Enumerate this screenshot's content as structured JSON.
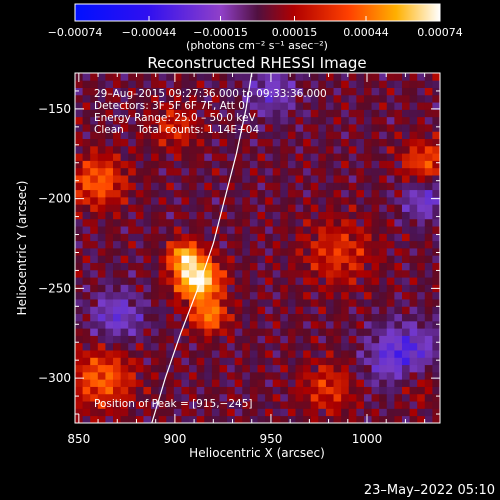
{
  "chart_data": {
    "type": "heatmap",
    "title": "Reconstructed RHESSI Image",
    "xlabel": "Heliocentric X (arcsec)",
    "ylabel": "Heliocentric Y (arcsec)",
    "xlim": [
      848,
      1038
    ],
    "ylim": [
      -325,
      -130
    ],
    "x_ticks": [
      850,
      900,
      950,
      1000
    ],
    "x_tick_labels": [
      "850",
      "900",
      "950",
      "1000"
    ],
    "y_ticks": [
      -150,
      -200,
      -250,
      -300
    ],
    "y_tick_labels": [
      "−150",
      "−200",
      "−250",
      "−300"
    ],
    "colorbar": {
      "range": [
        -0.00074,
        0.00074
      ],
      "tick_values": [
        -0.00074,
        -0.00044,
        -0.00015,
        0.00015,
        0.00044,
        0.00074
      ],
      "tick_labels": [
        "−0.00074",
        "−0.00044",
        "−0.00015",
        "0.00015",
        "0.00044",
        "0.00074"
      ],
      "units_label": "(photons cm⁻² s⁻¹ asec⁻²)"
    },
    "annotations": [
      "29–Aug–2015 09:27:36.000 to 09:33:36.000",
      "Detectors: 3F 5F 6F 7F, Att 0",
      "Energy Range: 25.0 – 50.0 keV",
      "Clean    Total counts: 1.14E+04"
    ],
    "peak_label": "Position of Peak = [915,−245]",
    "peak": [
      915,
      -245
    ],
    "limb_curve": [
      [
        888,
        -325
      ],
      [
        895,
        -300
      ],
      [
        903,
        -275
      ],
      [
        912,
        -250
      ],
      [
        920,
        -225
      ],
      [
        926,
        -200
      ],
      [
        932,
        -175
      ],
      [
        937,
        -150
      ],
      [
        940,
        -130
      ]
    ],
    "hot_spots": [
      {
        "x": 912,
        "y": -245,
        "amp": 1.0,
        "r": 11
      },
      {
        "x": 905,
        "y": -232,
        "amp": 0.7,
        "r": 8
      },
      {
        "x": 918,
        "y": -265,
        "amp": 0.55,
        "r": 9
      },
      {
        "x": 860,
        "y": -190,
        "amp": 0.45,
        "r": 14
      },
      {
        "x": 862,
        "y": -300,
        "amp": 0.45,
        "r": 16
      },
      {
        "x": 1030,
        "y": -180,
        "amp": 0.4,
        "r": 12
      },
      {
        "x": 1025,
        "y": -300,
        "amp": 0.4,
        "r": 14
      },
      {
        "x": 985,
        "y": -230,
        "amp": 0.3,
        "r": 18
      },
      {
        "x": 980,
        "y": -305,
        "amp": 0.3,
        "r": 14
      },
      {
        "x": 900,
        "y": -160,
        "amp": 0.28,
        "r": 12
      }
    ],
    "cold_spots": [
      {
        "x": 1020,
        "y": -290,
        "amp": 0.6,
        "r": 18
      },
      {
        "x": 1030,
        "y": -200,
        "amp": 0.35,
        "r": 12
      },
      {
        "x": 870,
        "y": -265,
        "amp": 0.35,
        "r": 14
      },
      {
        "x": 950,
        "y": -140,
        "amp": 0.3,
        "r": 14
      }
    ]
  },
  "footer": {
    "timestamp": "23–May–2022 05:10"
  }
}
